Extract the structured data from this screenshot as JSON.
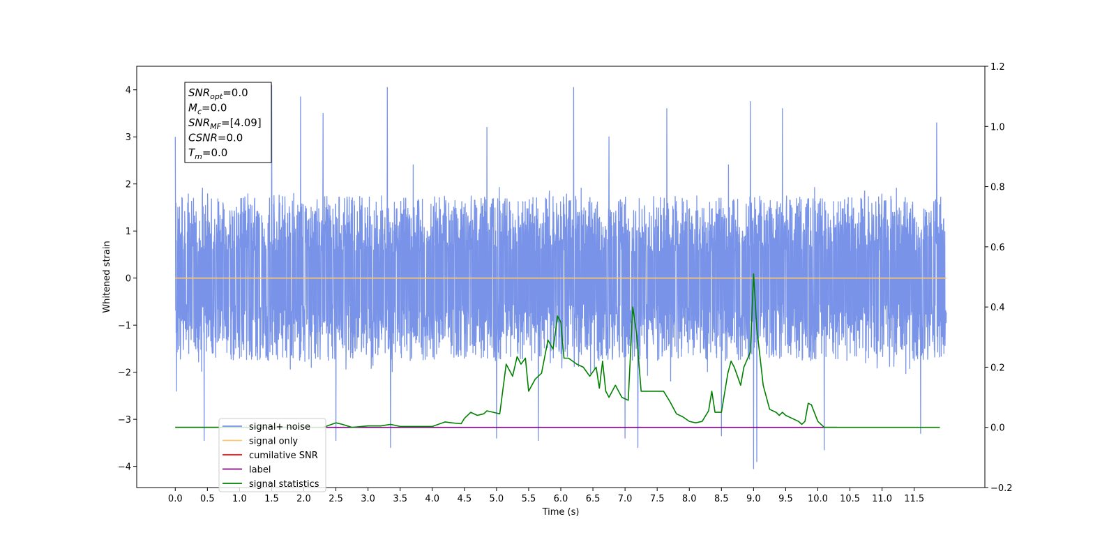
{
  "chart_data": {
    "type": "line",
    "xlabel": "Time (s)",
    "ylabel": "Whitened strain",
    "xlim": [
      -0.6,
      12.6
    ],
    "ylim": [
      -4.45,
      4.5
    ],
    "y2lim": [
      -0.2,
      1.2
    ],
    "x_ticks": [
      0.0,
      0.5,
      1.0,
      1.5,
      2.0,
      2.5,
      3.0,
      3.5,
      4.0,
      4.5,
      5.0,
      5.5,
      6.0,
      6.5,
      7.0,
      7.5,
      8.0,
      8.5,
      9.0,
      9.5,
      10.0,
      10.5,
      11.0,
      11.5
    ],
    "x_tick_labels": [
      "0.0",
      "0.5",
      "1.0",
      "1.5",
      "2.0",
      "2.5",
      "3.0",
      "3.5",
      "4.0",
      "4.5",
      "5.0",
      "5.5",
      "6.0",
      "6.5",
      "7.0",
      "7.5",
      "8.0",
      "8.5",
      "9.0",
      "9.5",
      "10.0",
      "10.5",
      "11.0",
      "11.5"
    ],
    "y_ticks": [
      4,
      3,
      2,
      1,
      0,
      -1,
      -2,
      -3,
      -4
    ],
    "y_tick_labels": [
      "4",
      "3",
      "2",
      "1",
      "0",
      "−1",
      "−2",
      "−3",
      "−4"
    ],
    "y2_ticks": [
      1.2,
      1.0,
      0.8,
      0.6,
      0.4,
      0.2,
      0.0,
      -0.2
    ],
    "y2_tick_labels": [
      "1.2",
      "1.0",
      "0.8",
      "0.6",
      "0.4",
      "0.2",
      "0.0",
      "−0.2"
    ],
    "annotation": [
      {
        "base": "SNR",
        "sub": "opt",
        "value": "=0.0"
      },
      {
        "base": "M",
        "sub": "c",
        "value": "=0.0"
      },
      {
        "base": "SNR",
        "sub": "MF",
        "value": "=[4.09]"
      },
      {
        "base": "CSNR",
        "sub": "",
        "value": "=0.0"
      },
      {
        "base": "T",
        "sub": "m",
        "value": "=0.0"
      }
    ],
    "legend": {
      "placement": "lower-left",
      "entries": [
        {
          "label": "signal+ noise",
          "color": "#7893e8"
        },
        {
          "label": "signal only",
          "color": "#ffc870"
        },
        {
          "label": "cumilative SNR",
          "color": "#ff0000"
        },
        {
          "label": "label",
          "color": "#800080"
        },
        {
          "label": "signal statistics",
          "color": "#008000"
        }
      ]
    },
    "series": [
      {
        "name": "signal+ noise",
        "axis": "left",
        "color": "#7893e8",
        "style": "dense noise band",
        "x_range": [
          0.0,
          12.0
        ],
        "typical_range": [
          -1.8,
          2.1
        ],
        "peaks": [
          {
            "x": 0.0,
            "y": 3.0
          },
          {
            "x": 0.02,
            "y": -2.4
          },
          {
            "x": 0.45,
            "y": -3.45
          },
          {
            "x": 1.5,
            "y": 4.1
          },
          {
            "x": 1.95,
            "y": 3.85
          },
          {
            "x": 2.3,
            "y": 3.5
          },
          {
            "x": 2.5,
            "y": -3.45
          },
          {
            "x": 3.3,
            "y": 4.05
          },
          {
            "x": 3.35,
            "y": -3.6
          },
          {
            "x": 4.85,
            "y": 3.2
          },
          {
            "x": 5.0,
            "y": -3.4
          },
          {
            "x": 5.65,
            "y": -3.45
          },
          {
            "x": 6.2,
            "y": 4.05
          },
          {
            "x": 6.75,
            "y": 3.0
          },
          {
            "x": 7.0,
            "y": -3.4
          },
          {
            "x": 7.2,
            "y": -3.6
          },
          {
            "x": 7.65,
            "y": 3.6
          },
          {
            "x": 8.5,
            "y": -3.35
          },
          {
            "x": 8.95,
            "y": 3.75
          },
          {
            "x": 9.0,
            "y": -4.05
          },
          {
            "x": 9.05,
            "y": -3.9
          },
          {
            "x": 9.45,
            "y": 3.6
          },
          {
            "x": 10.1,
            "y": -3.65
          },
          {
            "x": 11.6,
            "y": -3.3
          },
          {
            "x": 11.85,
            "y": 3.3
          }
        ]
      },
      {
        "name": "signal only",
        "axis": "left",
        "color": "#ffc870",
        "x": [
          0.0,
          12.0
        ],
        "y": [
          0.0,
          0.0
        ]
      },
      {
        "name": "label",
        "axis": "right",
        "color": "#800080",
        "x": [
          0.0,
          10.3
        ],
        "y": [
          0.0,
          0.0
        ]
      },
      {
        "name": "signal statistics",
        "axis": "right",
        "color": "#008000",
        "x": [
          0.0,
          2.3,
          2.5,
          2.6,
          2.75,
          3.0,
          3.2,
          3.35,
          3.5,
          4.0,
          4.2,
          4.3,
          4.45,
          4.5,
          4.6,
          4.7,
          4.8,
          4.85,
          4.95,
          5.05,
          5.15,
          5.25,
          5.32,
          5.38,
          5.45,
          5.5,
          5.6,
          5.7,
          5.8,
          5.88,
          5.95,
          6.0,
          6.05,
          6.12,
          6.25,
          6.35,
          6.45,
          6.55,
          6.6,
          6.65,
          6.7,
          6.75,
          6.85,
          6.95,
          7.05,
          7.12,
          7.18,
          7.25,
          7.35,
          7.5,
          7.6,
          7.7,
          7.8,
          7.9,
          8.0,
          8.1,
          8.2,
          8.3,
          8.35,
          8.4,
          8.5,
          8.6,
          8.65,
          8.7,
          8.8,
          8.85,
          8.95,
          9.0,
          9.05,
          9.15,
          9.25,
          9.35,
          9.4,
          9.45,
          9.5,
          9.6,
          9.7,
          9.75,
          9.8,
          9.85,
          9.9,
          10.0,
          10.1,
          11.0,
          11.9
        ],
        "y": [
          0.0,
          0.0,
          0.015,
          0.01,
          0.0,
          0.005,
          0.005,
          0.01,
          0.003,
          0.003,
          0.018,
          0.015,
          0.012,
          0.03,
          0.05,
          0.04,
          0.045,
          0.055,
          0.05,
          0.045,
          0.21,
          0.17,
          0.235,
          0.21,
          0.23,
          0.12,
          0.16,
          0.18,
          0.29,
          0.26,
          0.37,
          0.35,
          0.23,
          0.23,
          0.21,
          0.2,
          0.17,
          0.2,
          0.13,
          0.22,
          0.12,
          0.1,
          0.14,
          0.1,
          0.09,
          0.4,
          0.31,
          0.12,
          0.12,
          0.12,
          0.12,
          0.085,
          0.045,
          0.035,
          0.02,
          0.015,
          0.02,
          0.055,
          0.12,
          0.05,
          0.05,
          0.18,
          0.22,
          0.2,
          0.14,
          0.2,
          0.25,
          0.51,
          0.33,
          0.14,
          0.06,
          0.05,
          0.04,
          0.05,
          0.04,
          0.03,
          0.02,
          0.01,
          0.02,
          0.08,
          0.075,
          0.02,
          0.0,
          0.0,
          0.0
        ]
      }
    ]
  }
}
